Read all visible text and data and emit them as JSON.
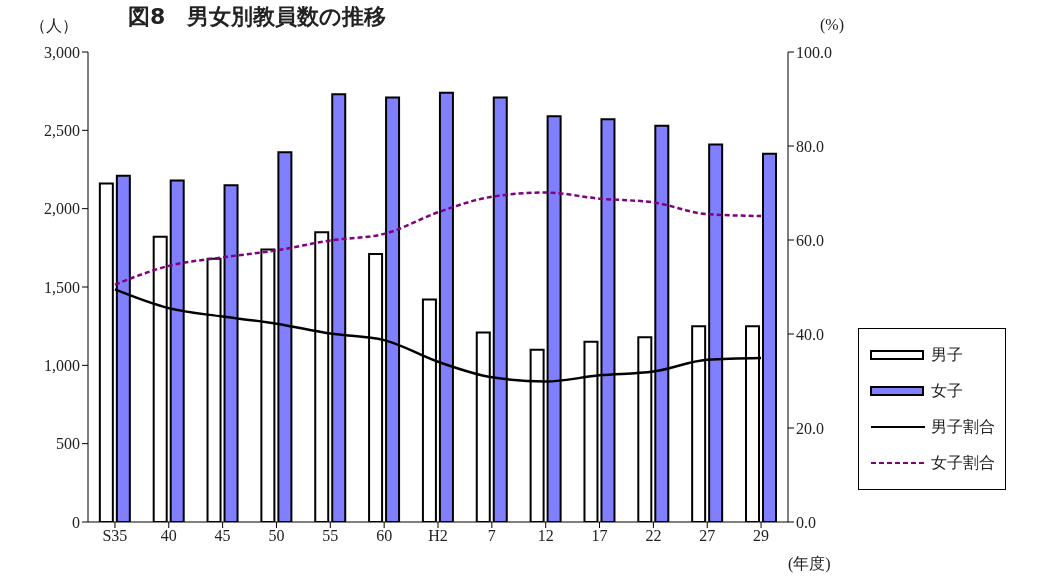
{
  "chart_data": {
    "type": "bar",
    "title": "図8　男女別教員数の推移",
    "ylabel": "（人）",
    "y2label": "(%)",
    "xlabel": "(年度)",
    "categories": [
      "S35",
      "40",
      "45",
      "50",
      "55",
      "60",
      "H2",
      "7",
      "12",
      "17",
      "22",
      "27",
      "29"
    ],
    "series": [
      {
        "name": "男子",
        "type": "bar",
        "color": "#ffffff",
        "values": [
          2160,
          1820,
          1680,
          1740,
          1850,
          1710,
          1420,
          1210,
          1100,
          1150,
          1180,
          1250,
          1250
        ]
      },
      {
        "name": "女子",
        "type": "bar",
        "color": "#8080ff",
        "values": [
          2210,
          2180,
          2150,
          2360,
          2730,
          2710,
          2740,
          2710,
          2590,
          2570,
          2530,
          2410,
          2350
        ]
      },
      {
        "name": "男子割合",
        "type": "line",
        "axis": "y2",
        "color": "#000000",
        "line_style": "solid",
        "values": [
          49.5,
          45.5,
          43.7,
          42.2,
          40.1,
          38.7,
          34.1,
          30.8,
          29.9,
          31.2,
          32.0,
          34.5,
          34.9
        ]
      },
      {
        "name": "女子割合",
        "type": "line",
        "axis": "y2",
        "color": "#800080",
        "line_style": "dashed",
        "values": [
          50.5,
          54.5,
          56.3,
          57.8,
          59.9,
          61.3,
          65.9,
          69.2,
          70.1,
          68.8,
          68.0,
          65.5,
          65.1
        ]
      }
    ],
    "ylim": [
      0,
      3000
    ],
    "yticks": [
      {
        "value": 0,
        "label": "0"
      },
      {
        "value": 500,
        "label": "500"
      },
      {
        "value": 1000,
        "label": "1,000"
      },
      {
        "value": 1500,
        "label": "1,500"
      },
      {
        "value": 2000,
        "label": "2,000"
      },
      {
        "value": 2500,
        "label": "2,500"
      },
      {
        "value": 3000,
        "label": "3,000"
      }
    ],
    "y2lim": [
      0,
      100
    ],
    "y2ticks": [
      {
        "value": 0,
        "label": "0.0"
      },
      {
        "value": 20,
        "label": "20.0"
      },
      {
        "value": 40,
        "label": "40.0"
      },
      {
        "value": 60,
        "label": "60.0"
      },
      {
        "value": 80,
        "label": "80.0"
      },
      {
        "value": 100,
        "label": "100.0"
      }
    ],
    "grid": false,
    "legend": "right",
    "marker": "none"
  }
}
